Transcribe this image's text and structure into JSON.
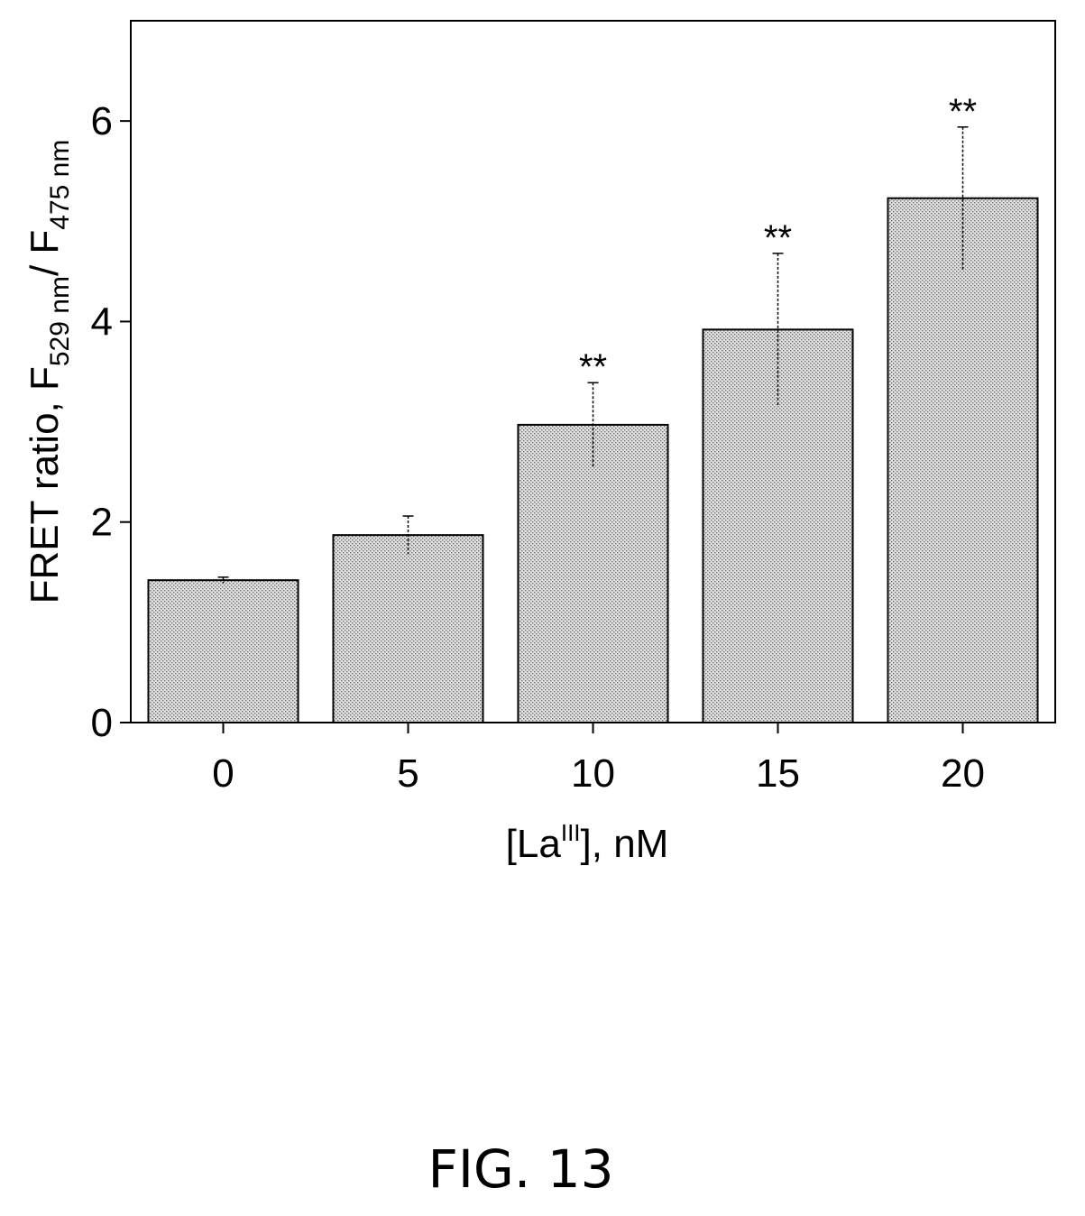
{
  "figure": {
    "caption": "FIG. 13"
  },
  "chart_data": {
    "type": "bar",
    "categories": [
      "0",
      "5",
      "10",
      "15",
      "20"
    ],
    "values": [
      1.42,
      1.87,
      2.97,
      3.92,
      5.23
    ],
    "error_upper": [
      0.03,
      0.19,
      0.42,
      0.76,
      0.71
    ],
    "error_lower": [
      0.03,
      0.19,
      0.42,
      0.76,
      0.71
    ],
    "significance": [
      "",
      "",
      "**",
      "**",
      "**"
    ],
    "ylim": [
      0,
      7
    ],
    "yticks": [
      0,
      2,
      4,
      6
    ],
    "xlabel": {
      "prefix": "[La",
      "sup": "III",
      "suffix": "], nM"
    },
    "ylabel": {
      "part1": "FRET ratio, F",
      "sub1": "529 nm",
      "part2": "/ F",
      "sub2": "475 nm"
    },
    "grid": false,
    "legend": "none",
    "colors": {
      "bar_fill": "#cfcfcf",
      "bar_stroke": "#000000",
      "axis": "#000000"
    }
  }
}
